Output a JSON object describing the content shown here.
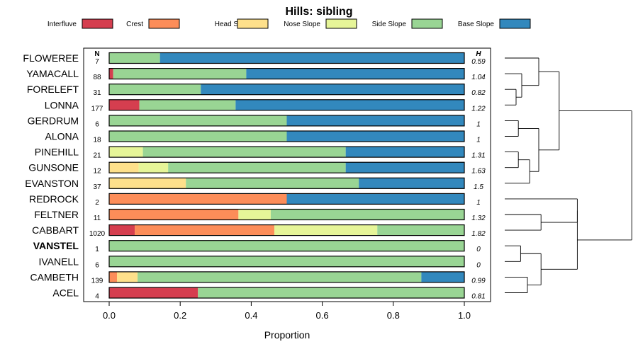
{
  "chart_data": {
    "type": "bar",
    "orientation": "horizontal",
    "stacked": true,
    "title": "Hills: sibling",
    "xlabel": "Proportion",
    "xlim": [
      0,
      1
    ],
    "xticks": [
      {
        "value": 0,
        "label": "0.0"
      },
      {
        "value": 0.2,
        "label": "0.2"
      },
      {
        "value": 0.4,
        "label": "0.4"
      },
      {
        "value": 0.6,
        "label": "0.6"
      },
      {
        "value": 0.8,
        "label": "0.8"
      },
      {
        "value": 1,
        "label": "1.0"
      }
    ],
    "n_header": "N",
    "h_header": "H",
    "legend_position": "top",
    "series": [
      {
        "name": "Interfluve",
        "color": "#d53e4f"
      },
      {
        "name": "Crest",
        "color": "#fc8d59"
      },
      {
        "name": "Head Slope",
        "color": "#fee08b"
      },
      {
        "name": "Nose Slope",
        "color": "#e6f598"
      },
      {
        "name": "Side Slope",
        "color": "#99d594"
      },
      {
        "name": "Base Slope",
        "color": "#3288bd"
      }
    ],
    "rows": [
      {
        "name": "FLOWEREE",
        "n": "7",
        "h": "0.59",
        "bold": false,
        "values": [
          0,
          0,
          0,
          0,
          0.143,
          0.857
        ]
      },
      {
        "name": "YAMACALL",
        "n": "88",
        "h": "1.04",
        "bold": false,
        "values": [
          0.011,
          0,
          0,
          0,
          0.375,
          0.614
        ]
      },
      {
        "name": "FORELEFT",
        "n": "31",
        "h": "0.82",
        "bold": false,
        "values": [
          0,
          0,
          0,
          0,
          0.258,
          0.742
        ]
      },
      {
        "name": "LONNA",
        "n": "177",
        "h": "1.22",
        "bold": false,
        "values": [
          0.085,
          0,
          0,
          0,
          0.271,
          0.644
        ]
      },
      {
        "name": "GERDRUM",
        "n": "6",
        "h": "1",
        "bold": false,
        "values": [
          0,
          0,
          0,
          0,
          0.5,
          0.5
        ]
      },
      {
        "name": "ALONA",
        "n": "18",
        "h": "1",
        "bold": false,
        "values": [
          0,
          0,
          0,
          0,
          0.5,
          0.5
        ]
      },
      {
        "name": "PINEHILL",
        "n": "21",
        "h": "1.31",
        "bold": false,
        "values": [
          0,
          0,
          0,
          0.095,
          0.571,
          0.334
        ]
      },
      {
        "name": "GUNSONE",
        "n": "12",
        "h": "1.63",
        "bold": false,
        "values": [
          0,
          0,
          0.083,
          0.083,
          0.5,
          0.334
        ]
      },
      {
        "name": "EVANSTON",
        "n": "37",
        "h": "1.5",
        "bold": false,
        "values": [
          0,
          0,
          0.216,
          0,
          0.487,
          0.297
        ]
      },
      {
        "name": "REDROCK",
        "n": "2",
        "h": "1",
        "bold": false,
        "values": [
          0,
          0.5,
          0,
          0,
          0,
          0.5
        ]
      },
      {
        "name": "FELTNER",
        "n": "11",
        "h": "1.32",
        "bold": false,
        "values": [
          0,
          0.364,
          0,
          0.091,
          0.545,
          0
        ]
      },
      {
        "name": "CABBART",
        "n": "1020",
        "h": "1.82",
        "bold": false,
        "values": [
          0.072,
          0.393,
          0,
          0.29,
          0.245,
          0
        ]
      },
      {
        "name": "VANSTEL",
        "n": "1",
        "h": "0",
        "bold": true,
        "values": [
          0,
          0,
          0,
          0,
          1,
          0
        ]
      },
      {
        "name": "IVANELL",
        "n": "6",
        "h": "0",
        "bold": false,
        "values": [
          0,
          0,
          0,
          0,
          1,
          0
        ]
      },
      {
        "name": "CAMBETH",
        "n": "139",
        "h": "0.99",
        "bold": false,
        "values": [
          0,
          0.022,
          0.058,
          0,
          0.799,
          0.121
        ]
      },
      {
        "name": "ACEL",
        "n": "4",
        "h": "0.81",
        "bold": false,
        "values": [
          0.25,
          0,
          0,
          0,
          0.75,
          0
        ]
      }
    ],
    "dendrogram": {
      "leaves": [
        "FLOWEREE",
        "YAMACALL",
        "FORELEFT",
        "LONNA",
        "GERDRUM",
        "ALONA",
        "PINEHILL",
        "GUNSONE",
        "EVANSTON",
        "REDROCK",
        "FELTNER",
        "CABBART",
        "VANSTEL",
        "IVANELL",
        "CAMBETH",
        "ACEL"
      ],
      "merges": [
        {
          "a": "FORELEFT",
          "b": "LONNA",
          "height": 0.5
        },
        {
          "a": "YAMACALL",
          "b": 0,
          "height": 0.75
        },
        {
          "a": "FLOWEREE",
          "b": 1,
          "height": 1.5
        },
        {
          "a": "GERDRUM",
          "b": "ALONA",
          "height": 0.6
        },
        {
          "a": "PINEHILL",
          "b": "GUNSONE",
          "height": 0.6
        },
        {
          "a": 4,
          "b": "EVANSTON",
          "height": 1.1
        },
        {
          "a": 3,
          "b": 5,
          "height": 1.5
        },
        {
          "a": 2,
          "b": 6,
          "height": 2.4
        },
        {
          "a": "FELTNER",
          "b": "CABBART",
          "height": 1.6
        },
        {
          "a": "REDROCK",
          "b": 8,
          "height": 3.2
        },
        {
          "a": "VANSTEL",
          "b": "IVANELL",
          "height": 0.7
        },
        {
          "a": "CAMBETH",
          "b": "ACEL",
          "height": 1.0
        },
        {
          "a": 10,
          "b": 11,
          "height": 1.6
        },
        {
          "a": 9,
          "b": 12,
          "height": 3.2
        },
        {
          "a": 7,
          "b": 13,
          "height": 5.6
        }
      ]
    }
  }
}
